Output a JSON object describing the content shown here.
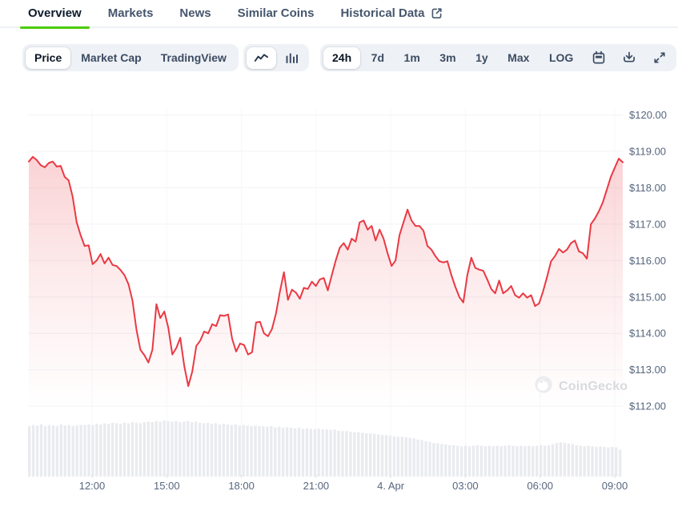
{
  "tabs": {
    "items": [
      {
        "label": "Overview",
        "active": true
      },
      {
        "label": "Markets",
        "active": false
      },
      {
        "label": "News",
        "active": false
      },
      {
        "label": "Similar Coins",
        "active": false
      },
      {
        "label": "Historical Data",
        "active": false,
        "icon": "external-link-icon"
      }
    ]
  },
  "toolbar": {
    "metric_buttons": [
      {
        "label": "Price",
        "active": true
      },
      {
        "label": "Market Cap",
        "active": false
      },
      {
        "label": "TradingView",
        "active": false
      }
    ],
    "chart_type_buttons": [
      {
        "icon": "line-chart-icon",
        "active": true
      },
      {
        "icon": "bar-chart-icon",
        "active": false
      }
    ],
    "range_buttons": [
      {
        "label": "24h",
        "active": true
      },
      {
        "label": "7d",
        "active": false
      },
      {
        "label": "1m",
        "active": false
      },
      {
        "label": "3m",
        "active": false
      },
      {
        "label": "1y",
        "active": false
      },
      {
        "label": "Max",
        "active": false
      },
      {
        "label": "LOG",
        "active": false
      }
    ],
    "action_buttons": [
      {
        "icon": "calendar-icon"
      },
      {
        "icon": "download-icon"
      },
      {
        "icon": "fullscreen-icon"
      }
    ]
  },
  "watermark": {
    "label": "CoinGecko",
    "icon": "coingecko-gecko-icon"
  },
  "colors": {
    "accent_green": "#4bcc00",
    "chart_red": "#ea3943",
    "tab_active_text": "#0d1b2c",
    "tab_inactive_text": "#46566d",
    "pill_bg": "#eef1f5",
    "axis_label": "#57667e",
    "volume_bar": "#e9ebef",
    "gridline": "#f1f3f6"
  },
  "chart_data": [
    {
      "type": "area",
      "name": "price-24h",
      "unit": "USD",
      "line_color": "#ea3943",
      "fill_top": "rgba(234,57,67,0.27)",
      "fill_mid": "rgba(234,57,67,0.10)",
      "fill_bottom": "rgba(234,57,67,0)",
      "ylim": [
        111.7,
        120.3
      ],
      "grid": true,
      "y_ticks": {
        "values": [
          120,
          119,
          118,
          117,
          116,
          115,
          114,
          113,
          112
        ],
        "labels": [
          "$120.00",
          "$119.00",
          "$118.00",
          "$117.00",
          "$116.00",
          "$115.00",
          "$114.00",
          "$113.00",
          "$112.00"
        ]
      },
      "x_labels": [
        "12:00",
        "15:00",
        "18:00",
        "21:00",
        "4. Apr",
        "03:00",
        "06:00",
        "09:00"
      ],
      "values": [
        118.72,
        118.85,
        118.76,
        118.62,
        118.56,
        118.68,
        118.72,
        118.58,
        118.6,
        118.3,
        118.2,
        117.75,
        117.05,
        116.7,
        116.4,
        116.42,
        115.9,
        116.0,
        116.18,
        115.92,
        116.08,
        115.88,
        115.85,
        115.74,
        115.6,
        115.35,
        114.9,
        114.1,
        113.55,
        113.4,
        113.2,
        113.55,
        114.8,
        114.42,
        114.6,
        114.15,
        113.42,
        113.6,
        113.88,
        113.1,
        112.55,
        112.95,
        113.65,
        113.8,
        114.05,
        114.0,
        114.25,
        114.2,
        114.5,
        114.48,
        114.52,
        113.85,
        113.5,
        113.72,
        113.68,
        113.42,
        113.48,
        114.3,
        114.32,
        114.0,
        113.92,
        114.12,
        114.55,
        115.15,
        115.68,
        114.92,
        115.2,
        115.12,
        114.95,
        115.25,
        115.22,
        115.42,
        115.3,
        115.48,
        115.52,
        115.18,
        115.6,
        116.0,
        116.35,
        116.48,
        116.3,
        116.6,
        116.52,
        117.05,
        117.1,
        116.85,
        116.95,
        116.55,
        116.85,
        116.6,
        116.2,
        115.85,
        116.0,
        116.7,
        117.05,
        117.4,
        117.1,
        116.95,
        116.95,
        116.82,
        116.4,
        116.3,
        116.12,
        115.98,
        115.95,
        115.98,
        115.6,
        115.28,
        115.0,
        114.85,
        115.6,
        116.08,
        115.8,
        115.75,
        115.72,
        115.48,
        115.22,
        115.1,
        115.45,
        115.1,
        115.18,
        115.3,
        115.05,
        114.98,
        115.1,
        114.98,
        115.05,
        114.75,
        114.82,
        115.15,
        115.55,
        115.98,
        116.12,
        116.32,
        116.22,
        116.3,
        116.48,
        116.55,
        116.25,
        116.2,
        116.05,
        117.0,
        117.15,
        117.35,
        117.6,
        117.95,
        118.3,
        118.55,
        118.8,
        118.7
      ]
    },
    {
      "type": "bar",
      "name": "volume",
      "color": "#e9ebef",
      "values_normalized": [
        0.9,
        0.92,
        0.91,
        0.93,
        0.9,
        0.92,
        0.91,
        0.9,
        0.93,
        0.91,
        0.92,
        0.9,
        0.91,
        0.92,
        0.92,
        0.93,
        0.92,
        0.94,
        0.93,
        0.95,
        0.94,
        0.96,
        0.95,
        0.94,
        0.96,
        0.95,
        0.97,
        0.96,
        0.95,
        0.97,
        0.98,
        0.97,
        0.99,
        0.98,
        1.0,
        0.99,
        0.98,
        0.99,
        0.97,
        0.98,
        0.99,
        0.97,
        0.98,
        0.96,
        0.95,
        0.96,
        0.94,
        0.95,
        0.93,
        0.94,
        0.93,
        0.92,
        0.93,
        0.91,
        0.92,
        0.91,
        0.9,
        0.91,
        0.9,
        0.9,
        0.89,
        0.9,
        0.88,
        0.89,
        0.87,
        0.88,
        0.87,
        0.86,
        0.87,
        0.85,
        0.86,
        0.85,
        0.84,
        0.85,
        0.84,
        0.84,
        0.83,
        0.84,
        0.82,
        0.81,
        0.81,
        0.8,
        0.79,
        0.79,
        0.78,
        0.77,
        0.77,
        0.76,
        0.75,
        0.74,
        0.74,
        0.73,
        0.72,
        0.71,
        0.71,
        0.7,
        0.69,
        0.68,
        0.66,
        0.65,
        0.63,
        0.62,
        0.6,
        0.59,
        0.58,
        0.57,
        0.56,
        0.56,
        0.55,
        0.54,
        0.55,
        0.54,
        0.55,
        0.56,
        0.55,
        0.54,
        0.55,
        0.54,
        0.55,
        0.54,
        0.55,
        0.56,
        0.55,
        0.54,
        0.55,
        0.54,
        0.55,
        0.54,
        0.55,
        0.56,
        0.55,
        0.56,
        0.58,
        0.6,
        0.61,
        0.6,
        0.59,
        0.58,
        0.56,
        0.55,
        0.54,
        0.55,
        0.54,
        0.53,
        0.54,
        0.53,
        0.52,
        0.53,
        0.52,
        0.48
      ]
    }
  ]
}
